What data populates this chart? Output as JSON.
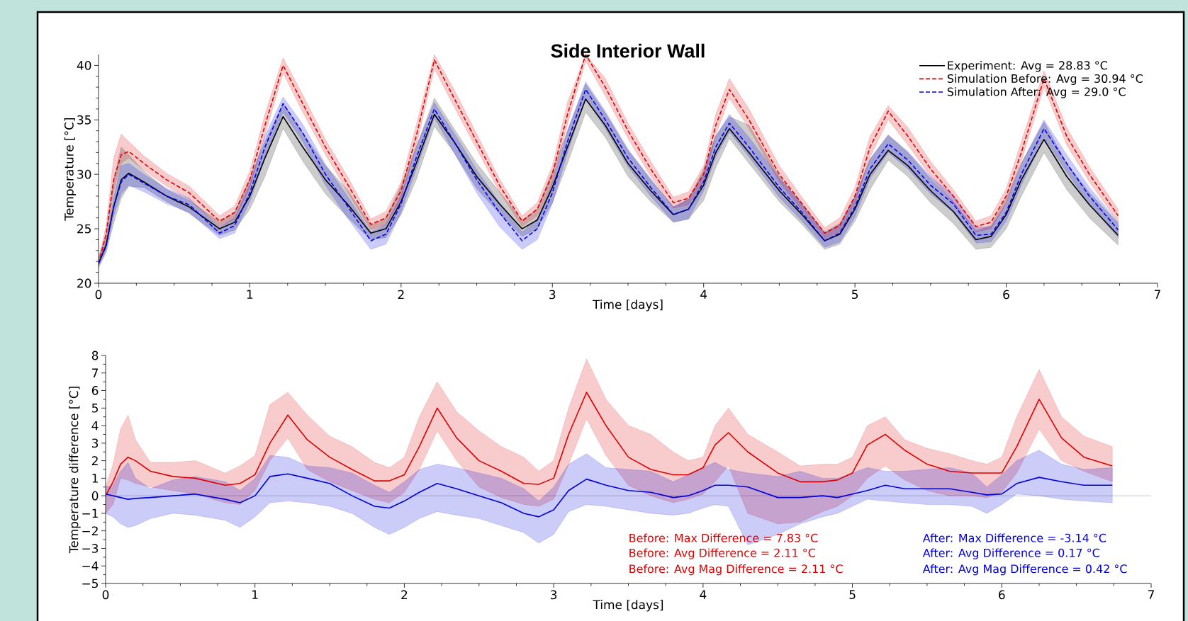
{
  "chart_data": [
    {
      "type": "line",
      "title": "Side Interior Wall",
      "xlabel": "Time [days]",
      "ylabel": "Temperature [°C]",
      "x": [
        0,
        0.05,
        0.1,
        0.15,
        0.2,
        0.3,
        0.45,
        0.6,
        0.8,
        0.9,
        1.0,
        1.1,
        1.22,
        1.35,
        1.5,
        1.65,
        1.8,
        1.9,
        2.0,
        2.1,
        2.22,
        2.35,
        2.5,
        2.65,
        2.8,
        2.9,
        3.0,
        3.1,
        3.22,
        3.35,
        3.5,
        3.65,
        3.8,
        3.9,
        4.0,
        4.08,
        4.17,
        4.3,
        4.5,
        4.65,
        4.8,
        4.9,
        5.0,
        5.1,
        5.22,
        5.35,
        5.5,
        5.65,
        5.8,
        5.9,
        6.0,
        6.1,
        6.25,
        6.4,
        6.55,
        6.74
      ],
      "xlim": [
        0,
        7
      ],
      "xticks": [
        0,
        1,
        2,
        3,
        4,
        5,
        6,
        7
      ],
      "ylim": [
        20,
        41
      ],
      "yticks": [
        20,
        25,
        30,
        35,
        40
      ],
      "legend": "top right",
      "series": [
        {
          "name": "Experiment: Avg = 28.83 °C",
          "color": "#000000",
          "line_style": "solid",
          "values": [
            21.8,
            23.5,
            27,
            29.5,
            30.1,
            29.3,
            28.0,
            27.0,
            25.0,
            25.6,
            28.0,
            31.5,
            35.3,
            32.5,
            29.5,
            27.2,
            24.6,
            25.0,
            27.5,
            31.0,
            35.5,
            33.0,
            29.8,
            27.3,
            25.0,
            25.8,
            28.8,
            32.5,
            36.9,
            34.5,
            31.0,
            28.5,
            26.3,
            26.8,
            29.0,
            32.0,
            34.2,
            32.0,
            28.5,
            26.3,
            23.9,
            24.5,
            26.8,
            30.0,
            32.2,
            30.8,
            28.5,
            26.6,
            24.0,
            24.3,
            26.3,
            29.5,
            33.2,
            29.8,
            27.2,
            24.4
          ],
          "lower": [
            21.4,
            22.8,
            25.5,
            27.8,
            28.9,
            28.8,
            27.5,
            26.4,
            24.4,
            24.9,
            26.8,
            29.8,
            34.2,
            31.2,
            28.2,
            26.0,
            24.0,
            24.2,
            26.3,
            29.5,
            34.4,
            32.0,
            28.7,
            26.4,
            24.3,
            25.0,
            27.4,
            31.0,
            35.7,
            33.4,
            29.8,
            27.5,
            25.6,
            25.9,
            27.6,
            30.6,
            33.3,
            31.0,
            27.5,
            25.4,
            23.1,
            23.6,
            25.7,
            28.6,
            31.3,
            29.8,
            27.4,
            25.5,
            23.1,
            23.3,
            25.0,
            28.0,
            32.0,
            28.6,
            26.0,
            23.5
          ],
          "upper": [
            22.4,
            24.5,
            29.5,
            32.5,
            31.8,
            30.3,
            28.6,
            27.6,
            25.6,
            26.5,
            29.6,
            33.0,
            36.5,
            33.8,
            30.8,
            28.5,
            25.3,
            26.0,
            29.0,
            32.5,
            37.0,
            34.2,
            31.0,
            28.4,
            25.8,
            26.8,
            30.3,
            34.0,
            38.3,
            35.6,
            32.2,
            29.5,
            27.0,
            27.7,
            30.5,
            33.5,
            35.3,
            34.5,
            29.8,
            27.2,
            24.7,
            25.5,
            28.0,
            31.4,
            33.6,
            32.0,
            29.6,
            27.5,
            24.8,
            25.3,
            27.8,
            31.0,
            34.8,
            31.0,
            28.3,
            25.5
          ]
        },
        {
          "name": "Simulation Before: Avg = 30.94 °C",
          "color": "#dd0000",
          "line_style": "dashed",
          "values": [
            21.8,
            24.5,
            29.5,
            31.8,
            32.1,
            31.0,
            29.5,
            28.3,
            25.7,
            26.5,
            29.5,
            34.5,
            40.0,
            36.5,
            32.5,
            29.0,
            25.4,
            26.0,
            28.5,
            33.5,
            40.5,
            37.0,
            33.0,
            29.0,
            25.7,
            26.8,
            30.0,
            35.5,
            41,
            38.0,
            34.0,
            30.5,
            27.4,
            27.8,
            30.0,
            34.5,
            37.8,
            35.0,
            30.0,
            27.3,
            24.6,
            25.3,
            28.0,
            32.5,
            35.8,
            33.5,
            30.5,
            28.0,
            25.2,
            25.6,
            28.0,
            32.0,
            38.8,
            33.5,
            30.0,
            26.2
          ],
          "lower": [
            21.6,
            24.0,
            28.5,
            31.0,
            31.5,
            30.4,
            28.9,
            27.7,
            25.2,
            25.9,
            28.8,
            33.6,
            39.3,
            35.7,
            31.8,
            28.3,
            24.9,
            25.4,
            27.8,
            32.6,
            39.7,
            36.2,
            32.3,
            28.4,
            25.2,
            26.2,
            29.2,
            34.6,
            40.4,
            37.2,
            33.3,
            29.8,
            26.9,
            27.2,
            29.3,
            33.6,
            37.0,
            34.2,
            29.3,
            26.7,
            24.1,
            24.7,
            27.3,
            31.6,
            35.0,
            32.7,
            29.8,
            27.4,
            24.7,
            25.0,
            27.3,
            31.2,
            38.0,
            32.7,
            29.3,
            25.6
          ],
          "upper": [
            22.2,
            25.3,
            31.5,
            33.7,
            33.0,
            31.7,
            30.1,
            28.9,
            26.2,
            27.1,
            30.3,
            35.5,
            40.7,
            37.3,
            33.2,
            29.7,
            25.9,
            26.6,
            29.3,
            34.5,
            41,
            37.8,
            33.7,
            29.6,
            26.2,
            27.4,
            30.8,
            36.6,
            41,
            38.8,
            34.7,
            31.2,
            27.9,
            28.4,
            30.8,
            35.5,
            38.8,
            36.0,
            30.8,
            27.9,
            25.1,
            26.0,
            28.8,
            33.5,
            36.3,
            34.3,
            31.2,
            28.6,
            25.7,
            26.2,
            28.7,
            33.0,
            39.5,
            34.3,
            30.7,
            26.8
          ]
        },
        {
          "name": "Simulation After: Avg = 29.0 °C",
          "color": "#0000ee",
          "line_style": "dashed",
          "values": [
            21.8,
            23.4,
            27,
            29.3,
            30.0,
            29.2,
            28.0,
            27.2,
            24.6,
            25.3,
            28.3,
            32.5,
            36.5,
            33.8,
            30.0,
            27.0,
            23.9,
            24.5,
            27.3,
            31.5,
            36.0,
            33.0,
            29.5,
            26.5,
            23.9,
            25.0,
            28.3,
            33.0,
            37.8,
            35.0,
            31.5,
            28.8,
            26.3,
            26.8,
            29.3,
            32.5,
            34.7,
            32.5,
            28.8,
            26.5,
            23.9,
            24.6,
            27.0,
            30.5,
            32.8,
            31.3,
            29.0,
            27.3,
            24.4,
            24.5,
            26.5,
            30.0,
            34.2,
            31.0,
            28.0,
            24.9
          ],
          "lower": [
            21.6,
            23.0,
            26.2,
            28.2,
            29.0,
            28.4,
            27.3,
            26.5,
            24.1,
            24.6,
            27.5,
            31.5,
            35.7,
            33.0,
            29.0,
            25.9,
            23.1,
            23.6,
            26.5,
            30.5,
            35.2,
            32.0,
            28.3,
            25.2,
            23.1,
            24.0,
            27.3,
            32.0,
            37.0,
            34.2,
            30.7,
            28.0,
            25.6,
            25.9,
            28.5,
            31.6,
            33.9,
            31.6,
            27.9,
            25.7,
            23.3,
            23.8,
            26.1,
            29.6,
            32.0,
            30.5,
            28.2,
            26.5,
            23.7,
            23.8,
            25.7,
            29.0,
            33.4,
            30.2,
            27.2,
            24.2
          ],
          "upper": [
            22.0,
            23.8,
            27.8,
            30.8,
            31.0,
            30.0,
            28.7,
            27.8,
            25.1,
            26.0,
            29.1,
            33.5,
            37.1,
            34.6,
            30.9,
            27.9,
            24.7,
            25.4,
            28.1,
            32.5,
            36.6,
            33.8,
            30.4,
            27.4,
            24.7,
            25.9,
            29.2,
            34.0,
            38.5,
            35.8,
            32.3,
            29.6,
            27.0,
            27.7,
            30.1,
            33.5,
            35.5,
            33.4,
            29.7,
            27.3,
            24.6,
            25.4,
            27.8,
            31.4,
            33.6,
            32.1,
            29.8,
            28.1,
            25.1,
            25.2,
            27.3,
            31.0,
            35.0,
            31.8,
            28.8,
            25.6
          ]
        }
      ]
    },
    {
      "type": "line",
      "xlabel": "Time [days]",
      "ylabel": "Temperature difference [°C]",
      "x": [
        0,
        0.05,
        0.1,
        0.15,
        0.2,
        0.3,
        0.45,
        0.6,
        0.8,
        0.9,
        1.0,
        1.1,
        1.22,
        1.35,
        1.5,
        1.65,
        1.8,
        1.9,
        2.0,
        2.1,
        2.22,
        2.35,
        2.5,
        2.65,
        2.8,
        2.9,
        3.0,
        3.1,
        3.22,
        3.35,
        3.5,
        3.65,
        3.8,
        3.9,
        4.0,
        4.08,
        4.17,
        4.3,
        4.5,
        4.65,
        4.8,
        4.9,
        5.0,
        5.1,
        5.22,
        5.35,
        5.5,
        5.65,
        5.8,
        5.9,
        6.0,
        6.1,
        6.25,
        6.4,
        6.55,
        6.74
      ],
      "xlim": [
        0,
        7
      ],
      "xticks": [
        0,
        1,
        2,
        3,
        4,
        5,
        6,
        7
      ],
      "ylim": [
        -5,
        8
      ],
      "yticks": [
        {
          "value": -5,
          "label": "−5"
        },
        {
          "value": -4,
          "label": "−4"
        },
        {
          "value": -3,
          "label": "−3"
        },
        {
          "value": -2,
          "label": "−2"
        },
        {
          "value": -1,
          "label": "−1"
        },
        0,
        1,
        2,
        3,
        4,
        5,
        6,
        7,
        8
      ],
      "ref_lines": [
        {
          "axis": "y",
          "value": 0,
          "color": "#c8c8c8"
        }
      ],
      "annotations": [
        "Before: Max Difference = 7.83 °C",
        "Before: Avg Difference = 2.11 °C",
        "Before: Avg Mag Difference = 2.11 °C",
        "After: Max Difference = -3.14 °C",
        "After: Avg Difference = 0.17 °C",
        "After: Avg Mag Difference = 0.42 °C"
      ],
      "series": [
        {
          "color": "#dd0000",
          "line_style": "solid",
          "values": [
            0.0,
            0.8,
            1.8,
            2.2,
            2.0,
            1.4,
            1.1,
            1.0,
            0.6,
            0.7,
            1.2,
            3.0,
            4.6,
            3.2,
            2.2,
            1.5,
            0.85,
            0.85,
            1.2,
            2.8,
            5.0,
            3.3,
            2.0,
            1.4,
            0.7,
            0.65,
            1.0,
            3.5,
            5.9,
            4.0,
            2.2,
            1.5,
            1.2,
            1.2,
            1.6,
            2.9,
            3.6,
            2.5,
            1.3,
            0.8,
            0.8,
            0.9,
            1.3,
            2.9,
            3.5,
            2.6,
            1.8,
            1.4,
            1.3,
            1.3,
            1.3,
            2.8,
            5.5,
            3.3,
            2.2,
            1.7
          ],
          "lower": [
            -1.0,
            -0.5,
            1.0,
            0.9,
            0.7,
            0.5,
            0.3,
            0.1,
            -0.4,
            -0.5,
            0.3,
            2.0,
            3.3,
            1.5,
            0.8,
            0.3,
            -0.2,
            -0.4,
            0.2,
            1.5,
            3.7,
            2.0,
            0.5,
            -0.1,
            -0.5,
            -0.6,
            -0.2,
            1.8,
            4.4,
            2.3,
            0.6,
            0.0,
            -0.4,
            -0.2,
            0.1,
            0.8,
            1.7,
            -1.0,
            -1.6,
            -1.5,
            -0.9,
            -0.6,
            0.0,
            1.0,
            1.7,
            0.9,
            0.3,
            0.0,
            0.0,
            -0.1,
            0.2,
            1.3,
            3.8,
            2.0,
            1.4,
            0.8
          ],
          "upper": [
            0.5,
            1.8,
            3.8,
            4.6,
            3.2,
            1.9,
            1.9,
            2.0,
            1.3,
            1.7,
            2.3,
            5.2,
            5.9,
            4.6,
            3.4,
            2.8,
            1.9,
            1.6,
            2.2,
            4.5,
            6.5,
            4.8,
            3.7,
            2.8,
            2.2,
            1.4,
            2.0,
            5.0,
            7.8,
            5.5,
            4.0,
            3.5,
            2.5,
            2.0,
            2.2,
            4.0,
            5.0,
            3.5,
            2.5,
            1.7,
            1.8,
            1.8,
            2.2,
            4.0,
            4.5,
            3.2,
            2.7,
            2.4,
            2.0,
            1.8,
            2.2,
            4.5,
            7.2,
            4.5,
            3.4,
            2.8
          ]
        },
        {
          "color": "#0000dd",
          "line_style": "solid",
          "values": [
            0.1,
            0.0,
            -0.1,
            -0.2,
            -0.15,
            -0.1,
            0.0,
            0.1,
            -0.2,
            -0.4,
            0.0,
            1.1,
            1.25,
            1.0,
            0.7,
            0.0,
            -0.6,
            -0.7,
            -0.3,
            0.2,
            0.7,
            0.4,
            0.0,
            -0.4,
            -1.0,
            -1.2,
            -0.8,
            0.3,
            0.95,
            0.6,
            0.3,
            0.2,
            -0.1,
            0.0,
            0.3,
            0.6,
            0.6,
            0.5,
            -0.1,
            -0.1,
            0.0,
            -0.1,
            0.1,
            0.3,
            0.6,
            0.4,
            0.4,
            0.4,
            0.2,
            0.05,
            0.1,
            0.7,
            1.05,
            0.8,
            0.6,
            0.6
          ],
          "lower": [
            -1.0,
            -1.2,
            -1.6,
            -1.8,
            -1.7,
            -1.3,
            -1.0,
            -1.1,
            -1.4,
            -1.8,
            -1.2,
            -0.4,
            -0.3,
            -0.4,
            -0.6,
            -1.0,
            -1.8,
            -2.2,
            -1.8,
            -1.3,
            -0.9,
            -1.1,
            -1.3,
            -1.7,
            -2.1,
            -2.7,
            -2.2,
            -0.9,
            -0.5,
            -0.6,
            -0.8,
            -1.0,
            -1.1,
            -1.0,
            -0.7,
            -0.5,
            -0.6,
            -2.8,
            -2.2,
            -1.6,
            -1.2,
            -1.0,
            -0.6,
            -0.2,
            -0.3,
            -0.4,
            -0.5,
            -0.5,
            -0.6,
            -1.0,
            -0.5,
            0.1,
            0.0,
            -0.2,
            -0.3,
            -0.4
          ],
          "upper": [
            0.5,
            0.6,
            1.4,
            1.9,
            1.0,
            0.4,
            0.9,
            1.1,
            0.8,
            0.3,
            1.0,
            2.3,
            2.2,
            1.7,
            1.6,
            1.3,
            0.6,
            0.2,
            0.8,
            1.5,
            1.8,
            1.6,
            1.3,
            1.0,
            0.4,
            -0.3,
            0.5,
            1.8,
            2.4,
            1.6,
            1.5,
            1.4,
            0.8,
            1.2,
            1.6,
            1.9,
            1.5,
            1.3,
            1.1,
            1.4,
            1.0,
            1.0,
            1.3,
            1.6,
            1.4,
            1.4,
            1.5,
            1.6,
            1.3,
            0.5,
            1.2,
            2.0,
            2.6,
            1.8,
            1.5,
            1.6
          ]
        }
      ]
    }
  ]
}
